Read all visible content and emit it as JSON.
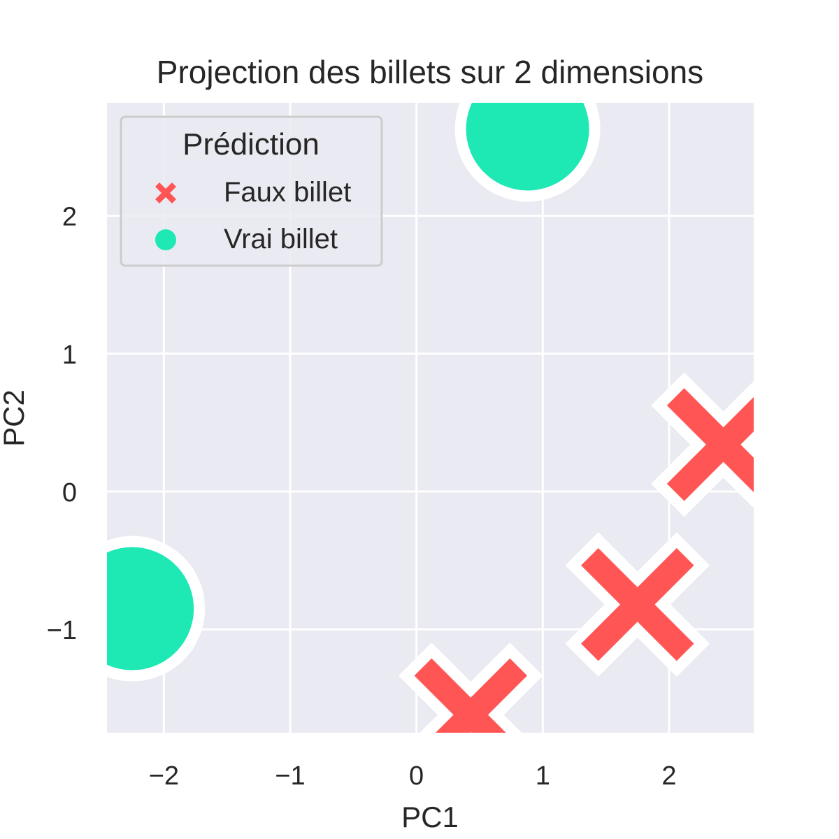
{
  "chart_data": {
    "type": "scatter",
    "title": "Projection des billets sur 2 dimensions",
    "xlabel": "PC1",
    "ylabel": "PC2",
    "xlim": [
      -2.45,
      2.67
    ],
    "ylim": [
      -1.75,
      2.82
    ],
    "xticks": [
      -2,
      -1,
      0,
      1,
      2
    ],
    "yticks": [
      -1,
      0,
      1,
      2
    ],
    "xtick_labels": [
      "−2",
      "−1",
      "0",
      "1",
      "2"
    ],
    "ytick_labels": [
      "−1",
      "0",
      "1",
      "2"
    ],
    "grid": true,
    "legend": {
      "title": "Prédiction",
      "placement": "top-left",
      "entries": [
        {
          "label": "Faux billet",
          "marker": "x-filled",
          "color": "#ff5555"
        },
        {
          "label": "Vrai billet",
          "marker": "circle",
          "color": "#1ee8b4"
        }
      ]
    },
    "series": [
      {
        "name": "Faux billet",
        "marker": "x-filled",
        "color": "#ff5555",
        "points": [
          [
            2.43,
            0.34
          ],
          [
            1.75,
            -0.82
          ],
          [
            0.43,
            -1.62
          ]
        ]
      },
      {
        "name": "Vrai billet",
        "marker": "circle",
        "color": "#1ee8b4",
        "points": [
          [
            0.88,
            2.63
          ],
          [
            -2.25,
            -0.85
          ]
        ]
      }
    ],
    "colors": {
      "background": "#eaeaf2",
      "grid": "#ffffff",
      "marker_edge": "#ffffff"
    }
  }
}
